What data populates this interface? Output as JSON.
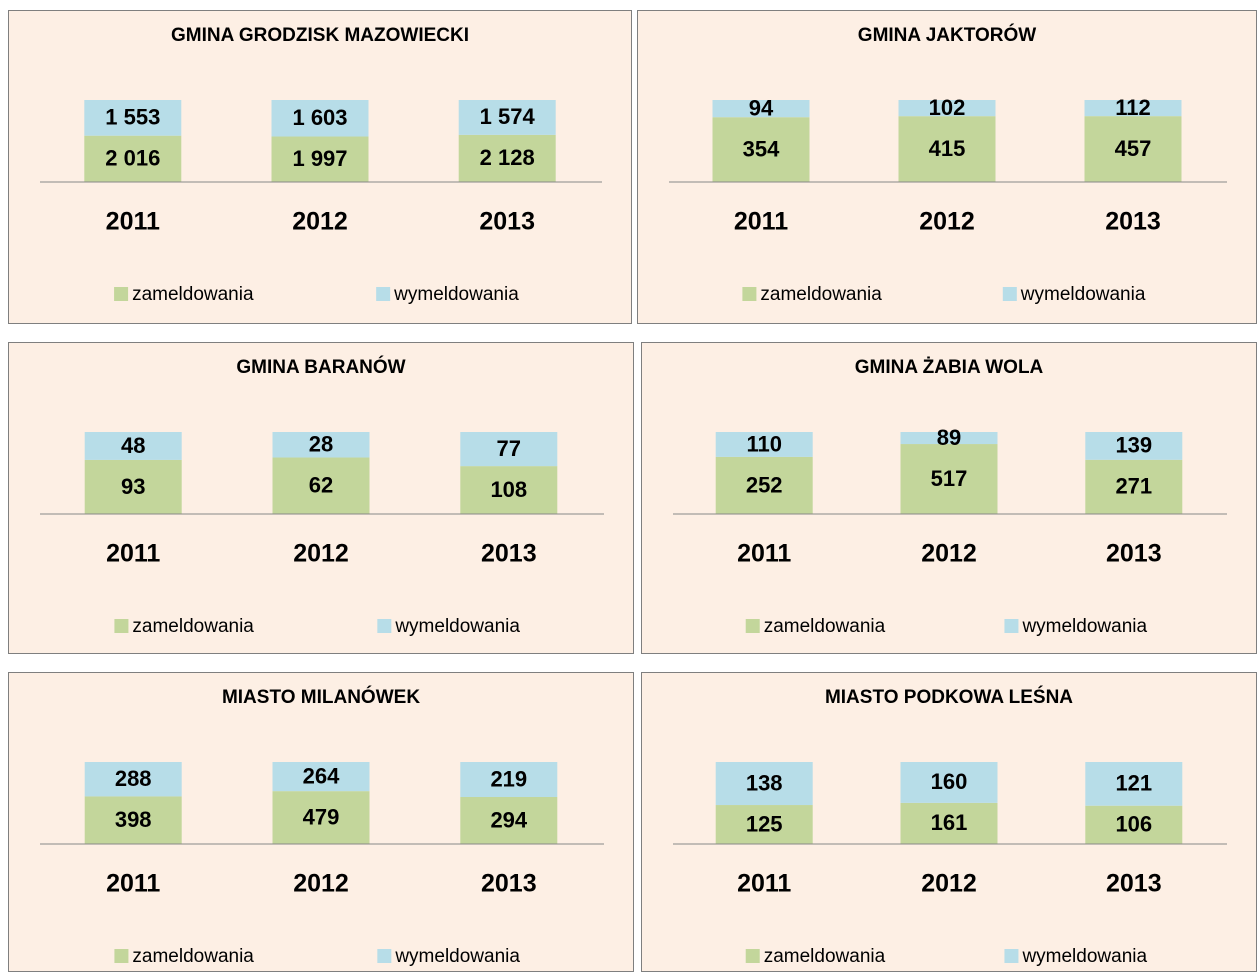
{
  "chart_data": [
    {
      "type": "bar",
      "stacking": "percent",
      "title": "GMINA GRODZISK MAZOWIECKI",
      "categories": [
        "2011",
        "2012",
        "2013"
      ],
      "legend": "bottom",
      "series": [
        {
          "name": "zameldowania",
          "color": "#c3d69b",
          "values": [
            2016,
            1997,
            2128
          ],
          "value_labels": [
            "2 016",
            "1 997",
            "2 128"
          ]
        },
        {
          "name": "wymeldowania",
          "color": "#b7dde8",
          "values": [
            1553,
            1603,
            1574
          ],
          "value_labels": [
            "1 553",
            "1 603",
            "1 574"
          ]
        }
      ]
    },
    {
      "type": "bar",
      "stacking": "percent",
      "title": "GMINA JAKTORÓW",
      "categories": [
        "2011",
        "2012",
        "2013"
      ],
      "legend": "bottom",
      "series": [
        {
          "name": "zameldowania",
          "color": "#c3d69b",
          "values": [
            354,
            415,
            457
          ]
        },
        {
          "name": "wymeldowania",
          "color": "#b7dde8",
          "values": [
            94,
            102,
            112
          ]
        }
      ]
    },
    {
      "type": "bar",
      "stacking": "percent",
      "title": "GMINA BARANÓW",
      "categories": [
        "2011",
        "2012",
        "2013"
      ],
      "legend": "bottom",
      "series": [
        {
          "name": "zameldowania",
          "color": "#c3d69b",
          "values": [
            93,
            62,
            108
          ]
        },
        {
          "name": "wymeldowania",
          "color": "#b7dde8",
          "values": [
            48,
            28,
            77
          ]
        }
      ]
    },
    {
      "type": "bar",
      "stacking": "percent",
      "title": "GMINA ŻABIA WOLA",
      "categories": [
        "2011",
        "2012",
        "2013"
      ],
      "legend": "bottom",
      "series": [
        {
          "name": "zameldowania",
          "color": "#c3d69b",
          "values": [
            252,
            517,
            271
          ]
        },
        {
          "name": "wymeldowania",
          "color": "#b7dde8",
          "values": [
            110,
            89,
            139
          ]
        }
      ]
    },
    {
      "type": "bar",
      "stacking": "percent",
      "title": "MIASTO MILANÓWEK",
      "categories": [
        "2011",
        "2012",
        "2013"
      ],
      "legend": "bottom",
      "series": [
        {
          "name": "zameldowania",
          "color": "#c3d69b",
          "values": [
            398,
            479,
            294
          ]
        },
        {
          "name": "wymeldowania",
          "color": "#b7dde8",
          "values": [
            288,
            264,
            219
          ]
        }
      ]
    },
    {
      "type": "bar",
      "stacking": "percent",
      "title": "MIASTO PODKOWA LEŚNA",
      "categories": [
        "2011",
        "2012",
        "2013"
      ],
      "legend": "bottom",
      "series": [
        {
          "name": "zameldowania",
          "color": "#c3d69b",
          "values": [
            125,
            161,
            106
          ]
        },
        {
          "name": "wymeldowania",
          "color": "#b7dde8",
          "values": [
            138,
            160,
            121
          ]
        }
      ]
    }
  ]
}
